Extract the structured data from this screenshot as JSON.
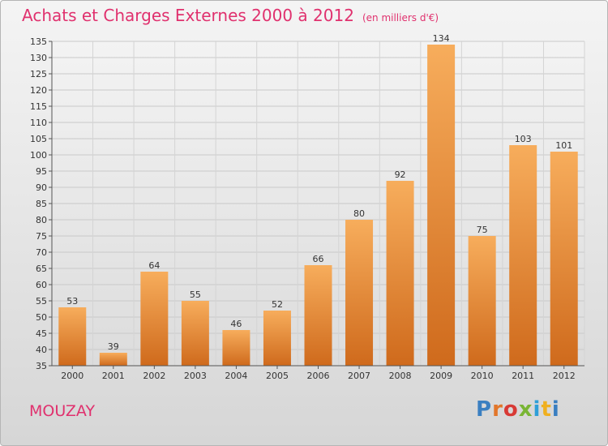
{
  "title": "Achats et Charges Externes 2000 à 2012",
  "subtitle": "(en milliers d'€)",
  "commune": "MOUZAY",
  "brand": {
    "letters": [
      "P",
      "r",
      "o",
      "x",
      "i",
      "t",
      "i"
    ],
    "colors": [
      "#3a7fc1",
      "#e2762a",
      "#d83a35",
      "#79b534",
      "#2f9fd8",
      "#f0b020",
      "#3a7fc1"
    ]
  },
  "colors": {
    "title": "#e0316e",
    "bar_light": "#f7ad5c",
    "bar_dark": "#cf6a1c"
  },
  "chart_data": {
    "type": "bar",
    "categories": [
      "2000",
      "2001",
      "2002",
      "2003",
      "2004",
      "2005",
      "2006",
      "2007",
      "2008",
      "2009",
      "2010",
      "2011",
      "2012"
    ],
    "values": [
      53,
      39,
      64,
      55,
      46,
      52,
      66,
      80,
      92,
      134,
      75,
      103,
      101
    ],
    "ylim": [
      35,
      135
    ],
    "yticks": [
      35,
      40,
      45,
      50,
      55,
      60,
      65,
      70,
      75,
      80,
      85,
      90,
      95,
      100,
      105,
      110,
      115,
      120,
      125,
      130,
      135
    ],
    "grid": true
  }
}
